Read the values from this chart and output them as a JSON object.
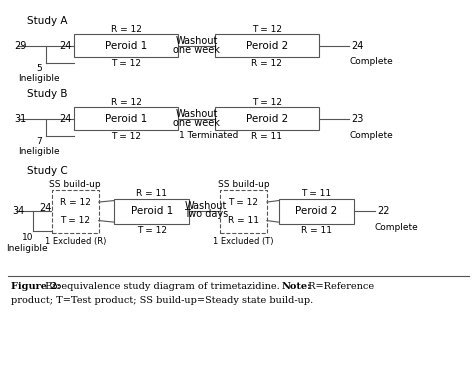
{
  "fig_color": "#ffffff",
  "study_a": {
    "label": "Study A",
    "start_n": "29",
    "rand_n": "24",
    "inelig": "5\nIneligible",
    "box1_label": "Peroid 1",
    "r_above1": "R = 12",
    "t_below1": "T = 12",
    "washout_line1": "Washout",
    "washout_line2": "one week",
    "box2_label": "Peroid 2",
    "r_above2": "T = 12",
    "t_below2": "R = 12",
    "end_n": "24",
    "end_label": "Complete"
  },
  "study_b": {
    "label": "Study B",
    "start_n": "31",
    "rand_n": "24",
    "inelig": "7\nIneligible",
    "box1_label": "Peroid 1",
    "r_above1": "R = 12",
    "t_below1": "T = 12",
    "washout_line1": "Washout",
    "washout_line2": "one week",
    "extra_below": "1 Terminated",
    "box2_label": "Peroid 2",
    "r_above2": "T = 12",
    "t_below2": "R = 11",
    "end_n": "23",
    "end_label": "Complete"
  },
  "study_c": {
    "label": "Study C",
    "start_n": "34",
    "rand_n": "24",
    "inelig": "10\nIneligible",
    "ss_label1": "SS build-up",
    "ss_box_r": "R = 12",
    "ss_box_t": "T = 12",
    "ss_excl": "1 Excluded (R)",
    "r_above_p1": "R = 11",
    "box1_label": "Peroid 1",
    "t_below1": "T = 12",
    "washout_line1": "Washout",
    "washout_line2": "Two days",
    "ss_label2": "SS build-up",
    "ss2_t": "T = 12",
    "ss2_r": "R = 11",
    "ss_excl2": "1 Excluded (T)",
    "t_above2": "T = 11",
    "box2_label": "Peroid 2",
    "r_below2": "R = 11",
    "end_n": "22",
    "end_label": "Complete"
  },
  "caption_fig": "Figure 2:",
  "caption_body": " Bioequivalence study diagram of trimetazidine. ",
  "caption_note": "Note:",
  "caption_ref": " R=Reference",
  "caption_line2": "product; T=Test product; SS build-up=Steady state build-up.",
  "line_color": "#555555",
  "box_edge_color": "#555555"
}
